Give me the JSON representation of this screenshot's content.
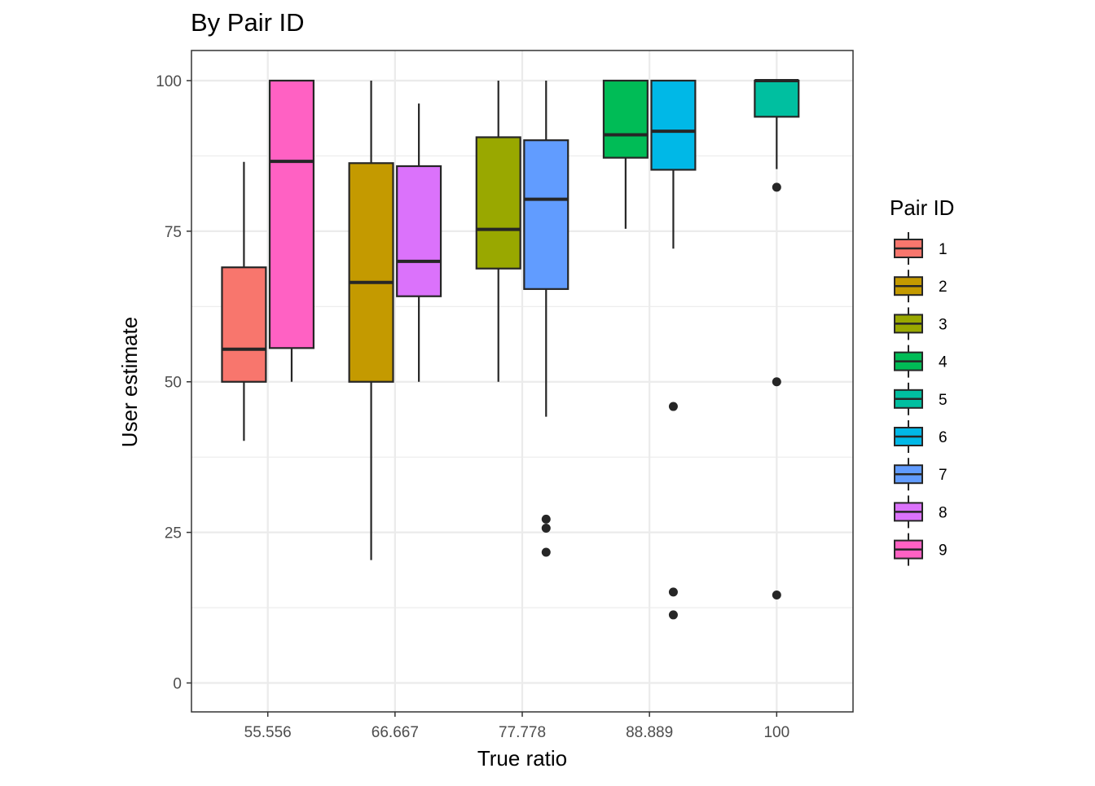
{
  "chart_data": {
    "type": "boxplot",
    "title": "By Pair ID",
    "xlabel": "True ratio",
    "ylabel": "User estimate",
    "ylim": [
      -4.8,
      105
    ],
    "y_ticks": [
      0,
      25,
      50,
      75,
      100
    ],
    "x_categories": [
      "55.556",
      "66.667",
      "77.778",
      "88.889",
      "100"
    ],
    "grid": true,
    "legend": {
      "title": "Pair ID",
      "placement": "right",
      "entries": [
        {
          "label": "1",
          "color": "#F8766D"
        },
        {
          "label": "2",
          "color": "#C49A00"
        },
        {
          "label": "3",
          "color": "#99A800"
        },
        {
          "label": "4",
          "color": "#00BC56"
        },
        {
          "label": "5",
          "color": "#00BFA0"
        },
        {
          "label": "6",
          "color": "#00B8E7"
        },
        {
          "label": "7",
          "color": "#619CFF"
        },
        {
          "label": "8",
          "color": "#DB72FB"
        },
        {
          "label": "9",
          "color": "#FF61C3"
        }
      ]
    },
    "boxes": [
      {
        "category": "55.556",
        "pair": "1",
        "slot": 0,
        "slots": 2,
        "whisker_low": 40.2,
        "q1": 50.0,
        "median": 55.4,
        "q3": 69.0,
        "whisker_high": 86.5,
        "outliers": []
      },
      {
        "category": "55.556",
        "pair": "9",
        "slot": 1,
        "slots": 2,
        "whisker_low": 50.0,
        "q1": 55.6,
        "median": 86.6,
        "q3": 100.0,
        "whisker_high": 100.0,
        "outliers": []
      },
      {
        "category": "66.667",
        "pair": "2",
        "slot": 0,
        "slots": 2,
        "whisker_low": 20.4,
        "q1": 50.0,
        "median": 66.5,
        "q3": 86.3,
        "whisker_high": 100.0,
        "outliers": []
      },
      {
        "category": "66.667",
        "pair": "8",
        "slot": 1,
        "slots": 2,
        "whisker_low": 50.0,
        "q1": 64.2,
        "median": 70.0,
        "q3": 85.8,
        "whisker_high": 96.2,
        "outliers": []
      },
      {
        "category": "77.778",
        "pair": "3",
        "slot": 0,
        "slots": 2,
        "whisker_low": 50.0,
        "q1": 68.8,
        "median": 75.3,
        "q3": 90.6,
        "whisker_high": 100.0,
        "outliers": []
      },
      {
        "category": "77.778",
        "pair": "7",
        "slot": 1,
        "slots": 2,
        "whisker_low": 44.2,
        "q1": 65.4,
        "median": 80.3,
        "q3": 90.1,
        "whisker_high": 100.0,
        "outliers": [
          27.2,
          25.7,
          21.7
        ]
      },
      {
        "category": "88.889",
        "pair": "4",
        "slot": 0,
        "slots": 2,
        "whisker_low": 75.4,
        "q1": 87.2,
        "median": 91.0,
        "q3": 100.0,
        "whisker_high": 100.0,
        "outliers": []
      },
      {
        "category": "88.889",
        "pair": "6",
        "slot": 1,
        "slots": 2,
        "whisker_low": 72.1,
        "q1": 85.2,
        "median": 91.6,
        "q3": 100.0,
        "whisker_high": 100.0,
        "outliers": [
          45.9,
          15.1,
          11.3
        ]
      },
      {
        "category": "100",
        "pair": "5",
        "slot": 0,
        "slots": 1,
        "whisker_low": 85.3,
        "q1": 94.0,
        "median": 100.0,
        "q3": 100.0,
        "whisker_high": 100.0,
        "outliers": [
          82.3,
          50.0,
          14.6
        ]
      }
    ]
  }
}
